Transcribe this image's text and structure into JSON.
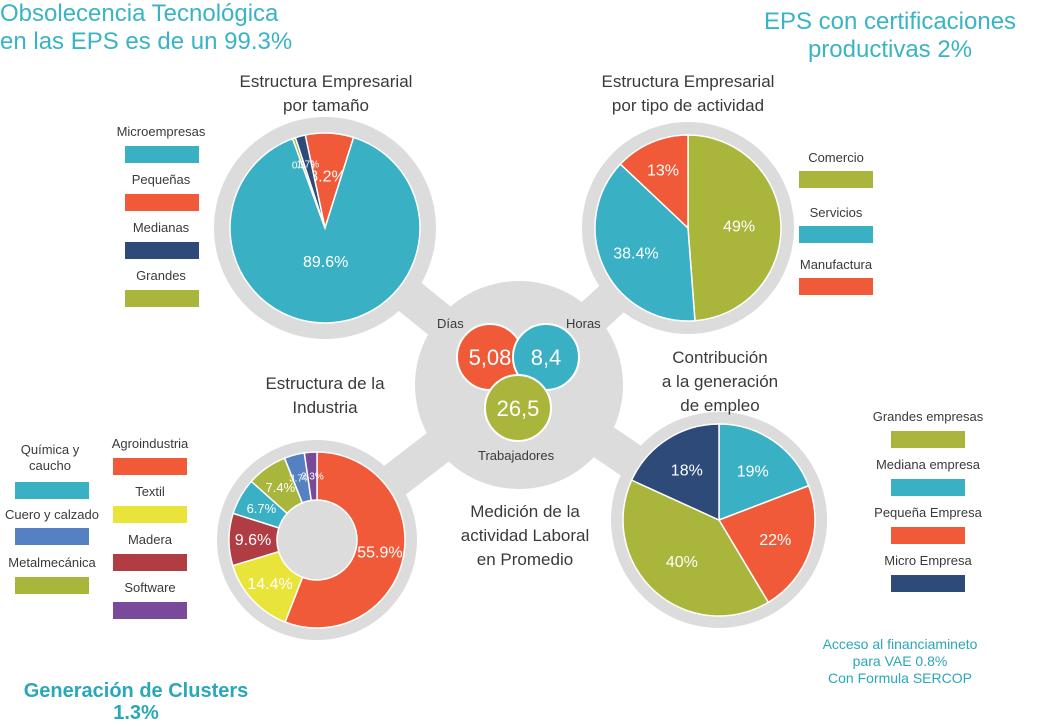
{
  "headlines": {
    "obsolescence": [
      "Obsolecencia Tecnológica",
      "en las EPS es de un 99.3%"
    ],
    "certifications": [
      "EPS con certificaciones",
      "productivas 2%"
    ],
    "clusters": [
      "Generación de Clusters",
      "1.3%"
    ],
    "financing": [
      "Acceso al financiamineto",
      "para VAE 0.8%",
      "Con Formula SERCOP"
    ]
  },
  "colors": {
    "teal": "#3ab0c4",
    "orange": "#f05a38",
    "navy": "#2d4a78",
    "olive": "#a9b53b",
    "yellow": "#e8e43a",
    "steel_blue": "#5580c2",
    "dark_red": "#b03c44",
    "purple": "#7a4a9a",
    "hub_gray": "#dcdcdc"
  },
  "center_hub": {
    "title": [
      "Medición de la",
      "actividad Laboral",
      "en Promedio"
    ],
    "metrics": [
      {
        "label": "Días",
        "value": "5,08",
        "color": "#f05a38"
      },
      {
        "label": "Horas",
        "value": "8,4",
        "color": "#3ab0c4"
      },
      {
        "label": "Trabajadores",
        "value": "26,5",
        "color": "#a9b53b"
      }
    ]
  },
  "chart_data": [
    {
      "type": "pie",
      "title": [
        "Estructura Empresarial",
        "por tamaño"
      ],
      "categories": [
        "Microempresas",
        "Pequeñas",
        "Medianas",
        "Grandes"
      ],
      "values": [
        89.6,
        8.2,
        1.7,
        0.5
      ],
      "labels": [
        "89.6%",
        "8.2%",
        "1.7%",
        "0.5%"
      ],
      "colors": [
        "#3ab0c4",
        "#f05a38",
        "#2d4a78",
        "#a9b53b"
      ]
    },
    {
      "type": "pie",
      "title": [
        "Estructura Empresarial",
        "por tipo de actividad"
      ],
      "categories": [
        "Comercio",
        "Servicios",
        "Manufactura"
      ],
      "values": [
        49,
        38.4,
        13
      ],
      "labels": [
        "49%",
        "38.4%",
        "13%"
      ],
      "colors": [
        "#a9b53b",
        "#3ab0c4",
        "#f05a38"
      ]
    },
    {
      "type": "pie",
      "title": [
        "Estructura de la",
        "Industria"
      ],
      "categories": [
        "Agroindustria",
        "Textil",
        "Madera",
        "Química y caucho",
        "Metalmecánica",
        "Cuero y calzado",
        "Software"
      ],
      "values": [
        55.9,
        14.4,
        9.6,
        6.7,
        7.4,
        3.7,
        2.3
      ],
      "labels": [
        "55.9%",
        "14.4%",
        "9.6%",
        "6.7%",
        "7.4%",
        "3.7%",
        "2.3%"
      ],
      "colors": [
        "#f05a38",
        "#e8e43a",
        "#b03c44",
        "#3ab0c4",
        "#a9b53b",
        "#5580c2",
        "#7a4a9a"
      ],
      "donut": true
    },
    {
      "type": "pie",
      "title": [
        "Contribución",
        "a la generación",
        "de empleo"
      ],
      "categories": [
        "Mediana empresa",
        "Pequeña Empresa",
        "Grandes empresas",
        "Micro Empresa"
      ],
      "values": [
        19,
        22,
        40,
        18
      ],
      "labels": [
        "19%",
        "22%",
        "40%",
        "18%"
      ],
      "colors": [
        "#3ab0c4",
        "#f05a38",
        "#a9b53b",
        "#2d4a78"
      ],
      "legend_order": [
        "Grandes empresas",
        "Mediana empresa",
        "Pequeña Empresa",
        "Micro Empresa"
      ],
      "legend_colors": [
        "#a9b53b",
        "#3ab0c4",
        "#f05a38",
        "#2d4a78"
      ]
    }
  ]
}
